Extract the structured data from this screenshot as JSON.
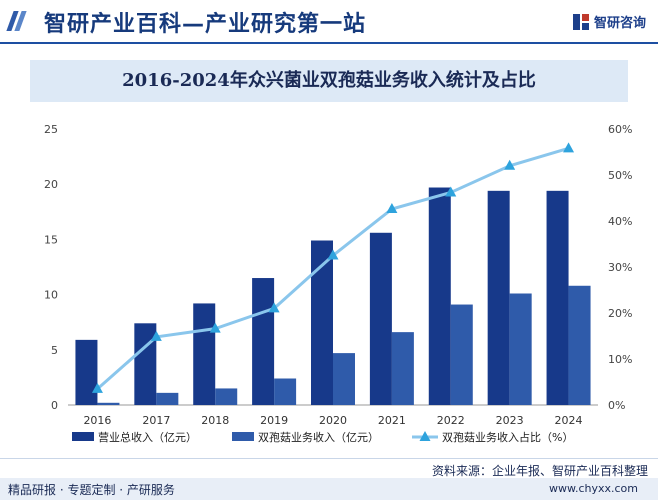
{
  "header": {
    "title": "智研产业百科—产业研究第一站",
    "logo_text": "智研咨询"
  },
  "footer": {
    "source": "资料来源：企业年报、智研产业百科整理",
    "left_text": "精品研报 · 专题定制 · 产研服务",
    "url": "www.chyxx.com"
  },
  "colors": {
    "revenue": "#17398a",
    "business": "#2f5baa",
    "ratio": "#8ac6ec"
  },
  "chart_data": {
    "type": "bar",
    "title": "2016-2024年众兴菌业双孢菇业务收入统计及占比",
    "categories": [
      "2016",
      "2017",
      "2018",
      "2019",
      "2020",
      "2021",
      "2022",
      "2023",
      "2024"
    ],
    "series": [
      {
        "name": "营业总收入（亿元）",
        "type": "bar",
        "axis": "left",
        "values": [
          5.9,
          7.4,
          9.2,
          11.5,
          14.9,
          15.6,
          19.7,
          19.4,
          19.4
        ]
      },
      {
        "name": "双孢菇业务收入（亿元）",
        "type": "bar",
        "axis": "left",
        "values": [
          0.2,
          1.1,
          1.5,
          2.4,
          4.7,
          6.6,
          9.1,
          10.1,
          10.8
        ]
      },
      {
        "name": "双孢菇业务收入占比（%）",
        "type": "line",
        "axis": "right",
        "values": [
          3.5,
          14.8,
          16.6,
          21.0,
          32.5,
          42.6,
          46.2,
          52.0,
          55.8
        ]
      }
    ],
    "y_left": {
      "min": 0,
      "max": 25,
      "ticks": [
        "0",
        "5",
        "10",
        "15",
        "20",
        "25"
      ]
    },
    "y_right": {
      "min": 0,
      "max": 60,
      "ticks": [
        "0%",
        "10%",
        "20%",
        "30%",
        "40%",
        "50%",
        "60%"
      ]
    },
    "legend_position": "bottom",
    "grid": false
  }
}
